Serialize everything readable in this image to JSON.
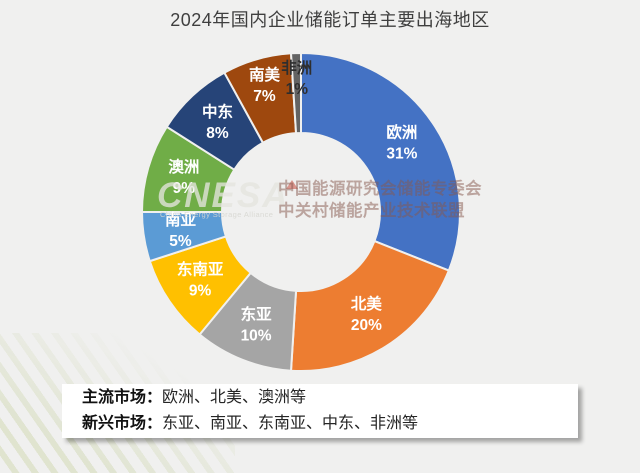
{
  "title": "2024年国内企业储能订单主要出海地区",
  "chart_data": {
    "type": "pie",
    "donut": true,
    "direction": "clockwise",
    "start_angle_deg": 0,
    "unit": "%",
    "title": "2024年国内企业储能订单主要出海地区",
    "categories": [
      "欧洲",
      "北美",
      "东亚",
      "东南亚",
      "南亚",
      "澳洲",
      "中东",
      "南美",
      "非洲"
    ],
    "values": [
      31,
      20,
      10,
      9,
      5,
      9,
      8,
      7,
      1
    ],
    "colors": [
      "#4472C4",
      "#ED7D31",
      "#A5A5A5",
      "#FFC000",
      "#5B9BD5",
      "#70AD47",
      "#264478",
      "#9E480E",
      "#636363"
    ],
    "label_colors": [
      "#ffffff",
      "#ffffff",
      "#ffffff",
      "#ffffff",
      "#ffffff",
      "#ffffff",
      "#ffffff",
      "#ffffff",
      "#2e2e2e"
    ],
    "legend_position": "none",
    "data_labels": "inside: name + percent"
  },
  "watermark": {
    "logo_text": "CNESA",
    "logo_subtext": "China Energy Storage Alliance",
    "org_line1": "中国能源研究会储能专委会",
    "org_line2": "中关村储能产业技术联盟"
  },
  "notes": {
    "line1_label": "主流市场：",
    "line1_value": "欧洲、北美、澳洲等",
    "line2_label": "新兴市场：",
    "line2_value": "东亚、南亚、东南亚、中东、非洲等"
  }
}
